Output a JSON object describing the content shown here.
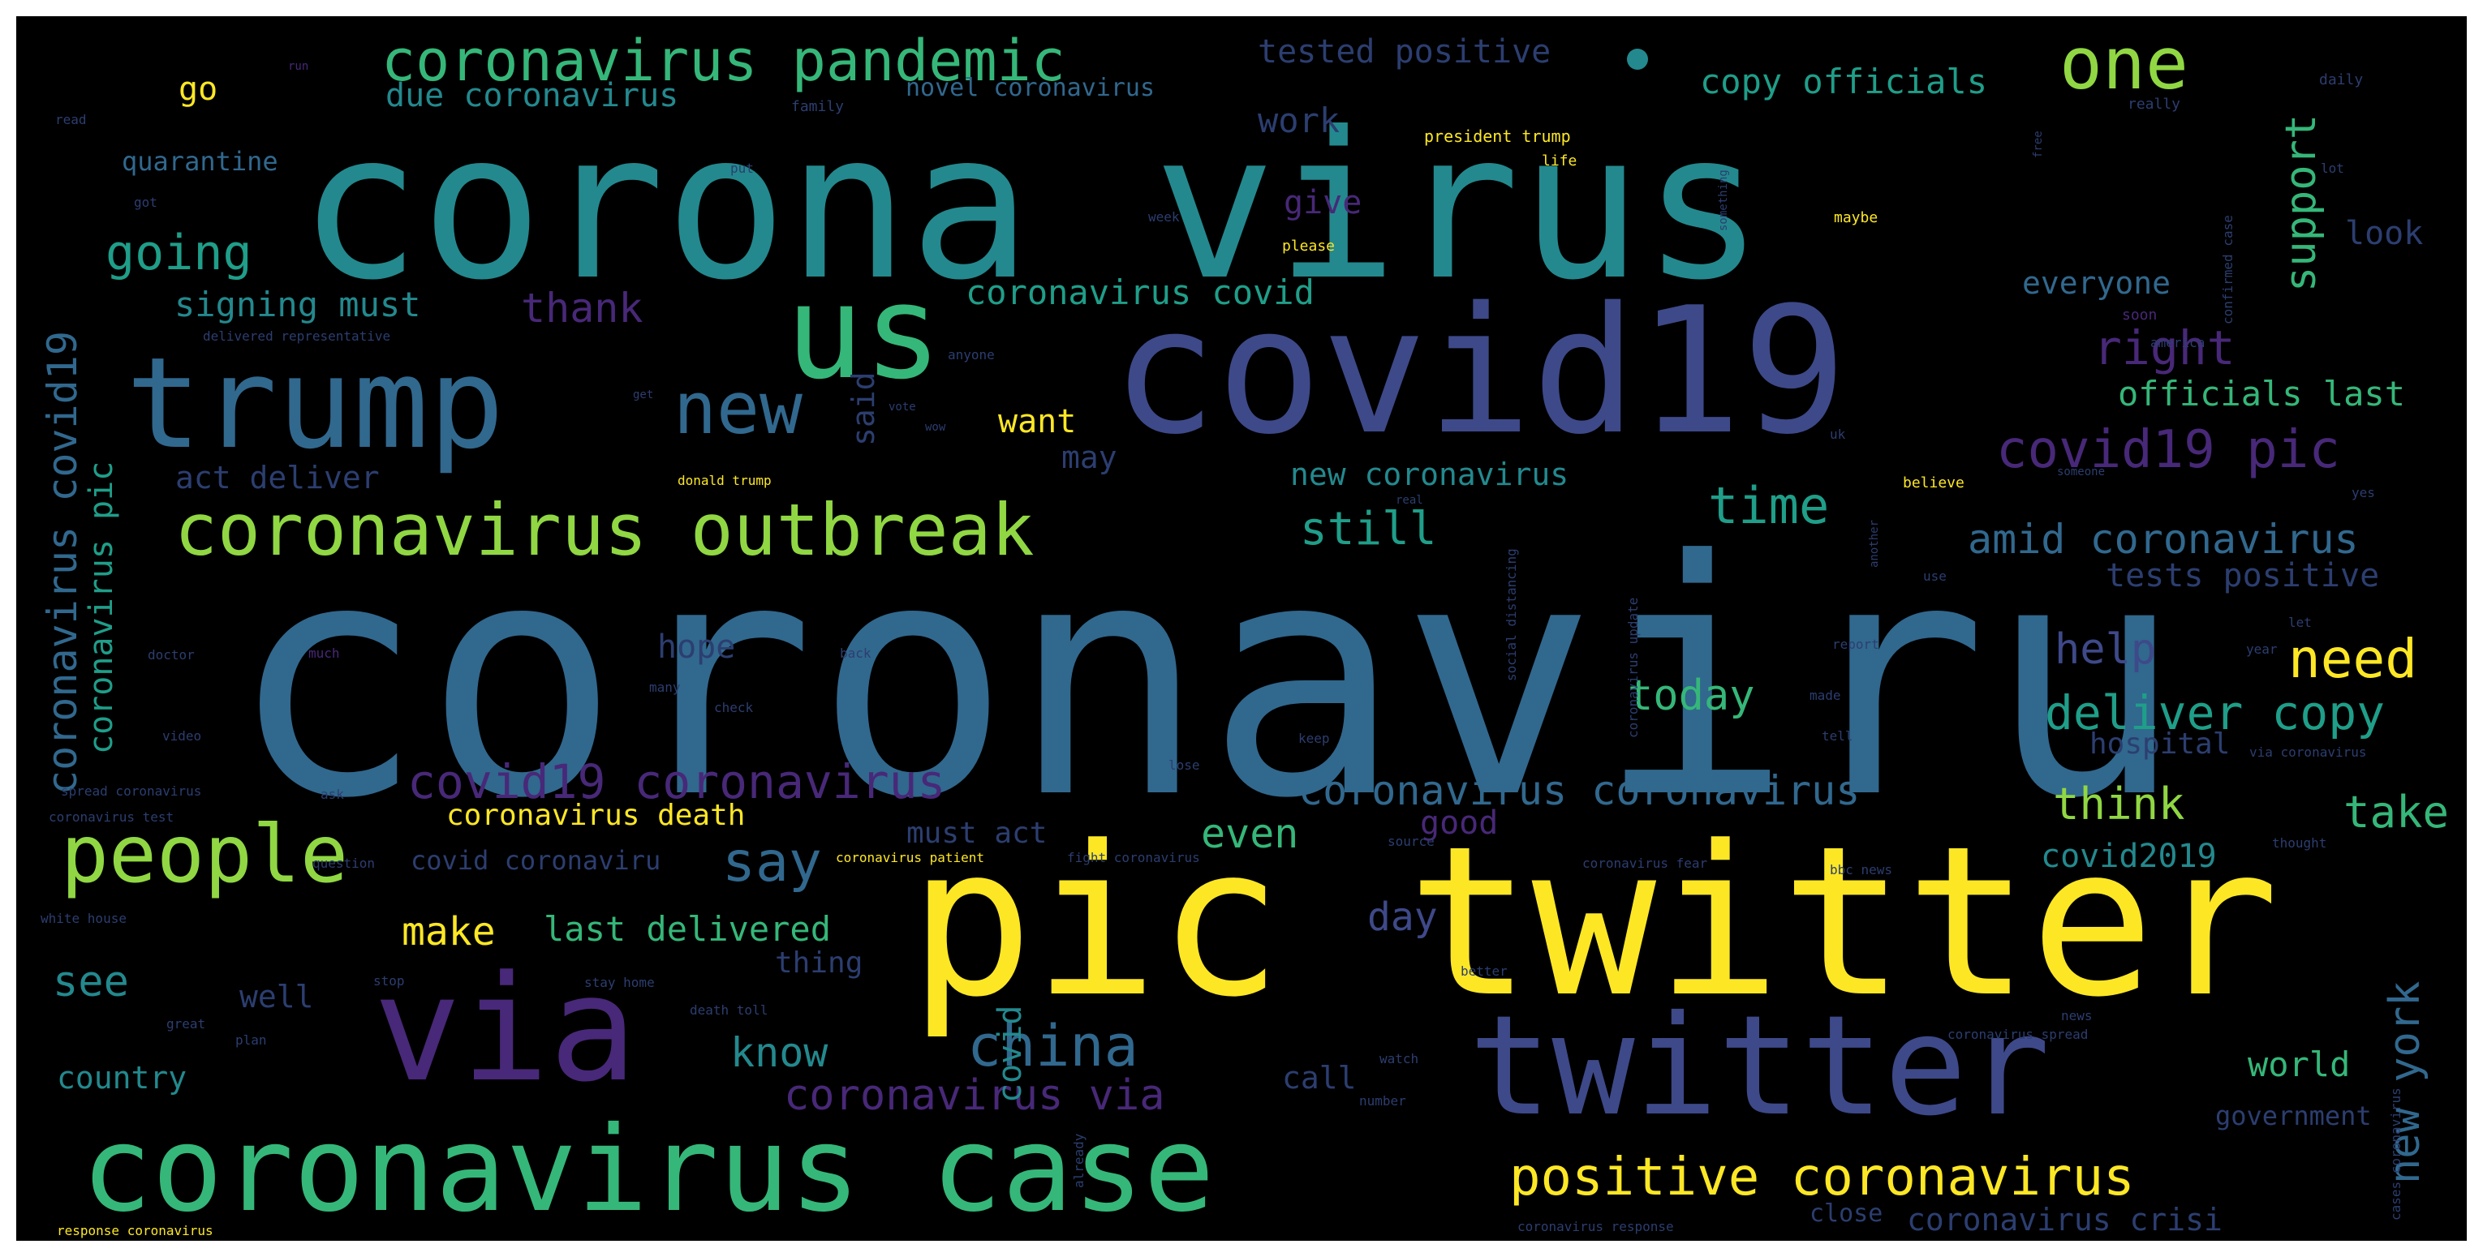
{
  "palette": {
    "teal": "#23898e",
    "blue": "#31688e",
    "indigo": "#3e4989",
    "purple": "#482878",
    "green": "#35b779",
    "lime": "#90d743",
    "yellow": "#fde725",
    "cyan": "#1f9e89",
    "dark": "#2c3e70"
  },
  "words": {
    "coronaviru": "coronaviru",
    "corona_virus": "corona virus",
    "pic_twitter": "pic twitter",
    "covid19": "covid19",
    "twitter": "twitter",
    "coronavirus_case": "coronavirus case",
    "via": "via",
    "trump": "trump",
    "us": "us",
    "coronavirus_outbreak": "coronavirus outbreak",
    "people": "people",
    "coronavirus_pandemic": "coronavirus pandemic",
    "one": "one",
    "new": "new",
    "positive_coronavirus": "positive coronavirus",
    "covid19_pic": "covid19 pic",
    "china": "china",
    "covid19_coronavirus": "covid19 coronavirus",
    "coronavirus_coronavirus": "coronavirus coronavirus",
    "amid_coronavirus": "amid coronavirus",
    "need": "need",
    "coronavirus_via": "coronavirus via",
    "deliver_copy": "deliver copy",
    "coronavirus_covid19": "coronavirus covid19",
    "coronavirus_pic": "coronavirus pic",
    "today": "today",
    "time": "time",
    "say": "say",
    "copy_officials": "copy officials",
    "tested_positive": "tested positive",
    "due_coronavirus": "due coronavirus",
    "novel_coronavirus": "novel coronavirus",
    "quarantine": "quarantine",
    "going": "going",
    "signing_must": "signing must",
    "thank": "thank",
    "coronavirus_covid": "coronavirus covid",
    "right": "right",
    "officials_last": "officials last",
    "support": "support",
    "everyone": "everyone",
    "look": "look",
    "work": "work",
    "give": "give",
    "go": "go",
    "still": "still",
    "act_deliver": "act deliver",
    "new_coronavirus": "new coronavirus",
    "want": "want",
    "may": "may",
    "said": "said",
    "tests_positive": "tests positive",
    "help": "help",
    "hope": "hope",
    "hospital": "hospital",
    "think": "think",
    "take": "take",
    "even": "even",
    "coronavirus_death": "coronavirus death",
    "good": "good",
    "must_act": "must act",
    "covid2019": "covid2019",
    "covid_coronaviru": "covid coronaviru",
    "make": "make",
    "last_delivered": "last delivered",
    "day": "day",
    "see": "see",
    "well": "well",
    "thing": "thing",
    "new_york": "new york",
    "know": "know",
    "covid": "covid",
    "country": "country",
    "call": "call",
    "world": "world",
    "government": "government",
    "coronavirus_crisi": "coronavirus crisi",
    "president_trump": "president trump",
    "delivered_representative": "delivered representative",
    "donald_trump": "donald trump",
    "white_house": "white house",
    "stay_home": "stay home",
    "death_toll": "death toll",
    "social_distancing": "social distancing",
    "coronavirus_update": "coronavirus update",
    "confirmed_case": "confirmed case",
    "via_coronavirus": "via coronavirus",
    "fight_coronavirus": "fight coronavirus",
    "coronavirus_fear": "coronavirus fear",
    "coronavirus_patient": "coronavirus patient",
    "bbc_news": "bbc news",
    "spread_coronavirus": "spread coronavirus",
    "coronavirus_test": "coronavirus test",
    "response_coronavirus": "response coronavirus",
    "coronavirus_response": "coronavirus response",
    "cases_coronavirus": "cases coronavirus",
    "coronavirus_spread": "coronavirus spread",
    "family": "family",
    "please": "please",
    "life": "life",
    "maybe": "maybe",
    "anyone": "anyone",
    "america": "america",
    "believe": "believe",
    "really": "really",
    "daily": "daily",
    "real": "real",
    "soon": "soon",
    "report": "report",
    "made": "made",
    "tell": "tell",
    "keep": "keep",
    "lose": "lose",
    "back": "back",
    "doctor": "doctor",
    "check": "check",
    "video": "video",
    "plan": "plan",
    "great": "great",
    "stop": "stop",
    "watch": "watch",
    "better": "better",
    "already": "already",
    "close": "close",
    "number": "number",
    "question": "question",
    "thought": "thought",
    "year": "year",
    "let": "let",
    "got": "got",
    "put": "put",
    "lot": "lot",
    "read": "read",
    "free": "free",
    "week": "week",
    "uk": "uk",
    "yes": "yes",
    "use": "use",
    "news": "news",
    "many": "many",
    "much": "much",
    "ask": "ask",
    "another": "another",
    "something": "something",
    "someone": "someone",
    "run": "run",
    "source": "source",
    "vote": "vote",
    "wow": "wow",
    "get": "get"
  }
}
